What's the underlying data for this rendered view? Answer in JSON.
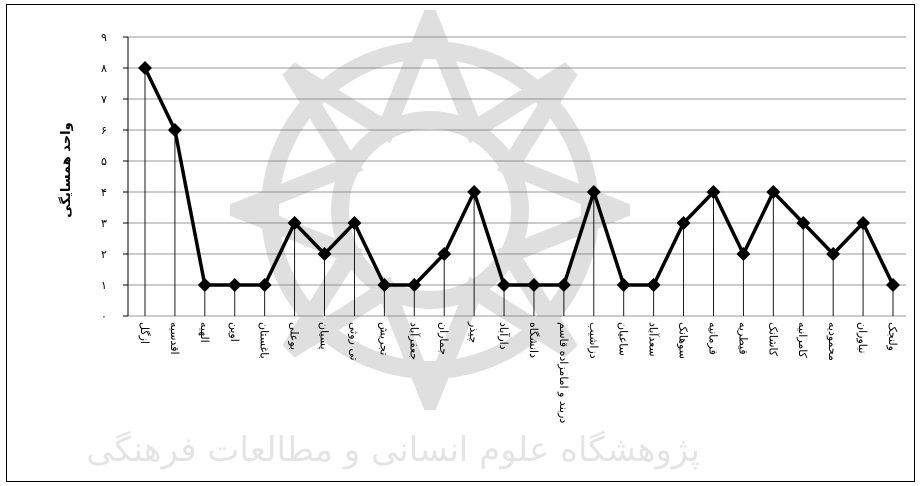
{
  "chart_data": {
    "type": "line",
    "ylabel": "واحد همسایگی",
    "ylim": [
      0,
      9
    ],
    "yticks": [
      "۰",
      "۱",
      "۲",
      "۳",
      "۴",
      "۵",
      "۶",
      "۷",
      "۸",
      "۹"
    ],
    "grid": true,
    "categories": [
      "ازگل",
      "اقدسیه",
      "الهیه",
      "اوین",
      "باغستان",
      "بوعلی",
      "پسیان",
      "تی روثی",
      "تجریش",
      "جعفرآباد",
      "جماران",
      "چیذر",
      "دارآباد",
      "دانشگاه",
      "دربند و امامزاده قاسم",
      "دزاشیب",
      "ساعیان",
      "سعدآباد",
      "سوهانک",
      "فرمانیه",
      "قیطریه",
      "کاشانک",
      "کامرانیه",
      "محمودیه",
      "نیاوران",
      "ولنجک"
    ],
    "series": [
      {
        "values": [
          8,
          6,
          1,
          1,
          1,
          3,
          2,
          3,
          1,
          1,
          2,
          4,
          1,
          1,
          1,
          4,
          1,
          1,
          3,
          4,
          2,
          4,
          3,
          2,
          3,
          1
        ]
      }
    ]
  },
  "watermark": {
    "text": "ﭘﮋوﻫﺸﮕﺎه ﻋﻠﻮم اﻧﺴﺎﻧﯽ و ﻣﻄﺎﻟﻌﺎت ﻓﺮﻫﻨﮕﯽ",
    "color": "#000000"
  }
}
